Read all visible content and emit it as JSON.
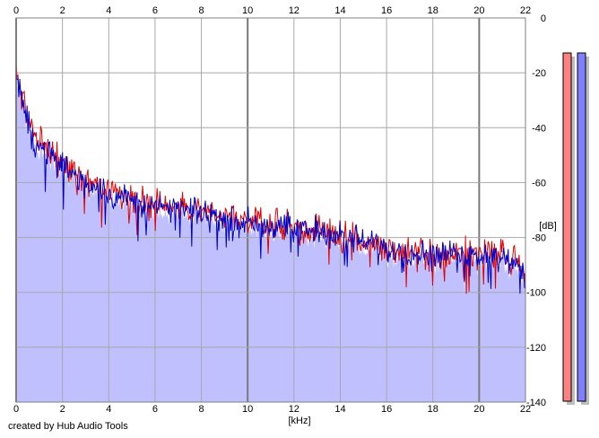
{
  "chart_data": {
    "type": "area",
    "xlabel": "[kHz]",
    "ylabel": "[dB]",
    "xlim": [
      0,
      22
    ],
    "ylim": [
      -140,
      0
    ],
    "x_ticks": [
      0,
      2,
      4,
      6,
      8,
      10,
      12,
      14,
      16,
      18,
      20,
      22
    ],
    "y_ticks": [
      0,
      -20,
      -40,
      -60,
      -80,
      -100,
      -120,
      -140
    ],
    "grid": true,
    "series": [
      {
        "color": "#e00000",
        "envelope": [
          [
            0,
            -20
          ],
          [
            0.3,
            -30
          ],
          [
            0.8,
            -44
          ],
          [
            1.5,
            -49
          ],
          [
            2.5,
            -56
          ],
          [
            3.5,
            -61
          ],
          [
            4.5,
            -64
          ],
          [
            6,
            -68
          ],
          [
            8,
            -71
          ],
          [
            10,
            -74
          ],
          [
            12,
            -76
          ],
          [
            14,
            -79
          ],
          [
            16,
            -84
          ],
          [
            18,
            -86
          ],
          [
            20,
            -85
          ],
          [
            21.5,
            -86
          ],
          [
            22,
            -94
          ]
        ]
      },
      {
        "color": "#0000c8",
        "envelope": [
          [
            0,
            -21
          ],
          [
            0.3,
            -32
          ],
          [
            0.8,
            -46
          ],
          [
            1.5,
            -50
          ],
          [
            2.5,
            -57
          ],
          [
            3.5,
            -62
          ],
          [
            4.5,
            -65
          ],
          [
            6,
            -69
          ],
          [
            8,
            -71
          ],
          [
            10,
            -74
          ],
          [
            12,
            -76
          ],
          [
            14,
            -79
          ],
          [
            16,
            -84
          ],
          [
            18,
            -86
          ],
          [
            20,
            -86
          ],
          [
            21.5,
            -88
          ],
          [
            22,
            -97
          ]
        ]
      }
    ],
    "fill_color": "#c0c0ff"
  },
  "meters": {
    "left_color": "#ff8080",
    "right_color": "#8080ff"
  },
  "footer": {
    "credit": "created by Hub Audio Tools"
  }
}
